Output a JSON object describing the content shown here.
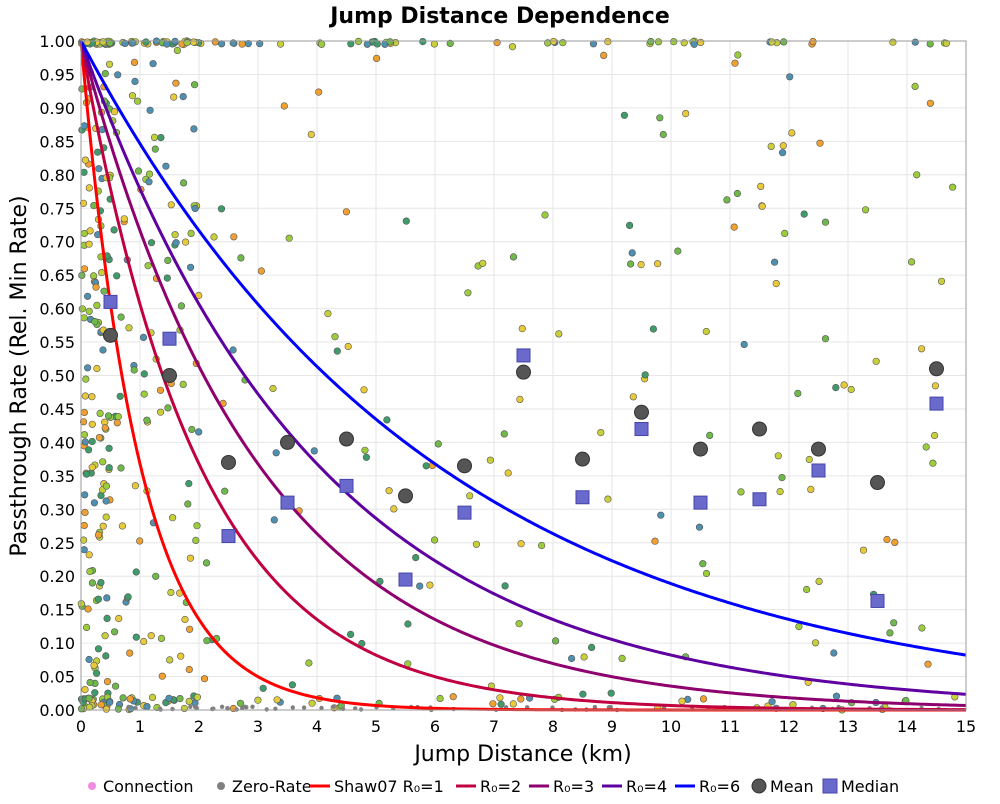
{
  "chart_data": {
    "type": "scatter",
    "title": "Jump Distance Dependence",
    "xlabel": "Jump Distance (km)",
    "ylabel": "Passthrough Rate (Rel. Min Rate)",
    "xlim": [
      0,
      15
    ],
    "ylim": [
      0,
      1
    ],
    "grid": true,
    "legend_position": "bottom",
    "x_ticks": [
      "0",
      "1",
      "2",
      "3",
      "4",
      "5",
      "6",
      "7",
      "8",
      "9",
      "10",
      "11",
      "12",
      "13",
      "14",
      "15"
    ],
    "y_ticks": [
      "0.00",
      "0.05",
      "0.10",
      "0.15",
      "0.20",
      "0.25",
      "0.30",
      "0.35",
      "0.40",
      "0.45",
      "0.50",
      "0.55",
      "0.60",
      "0.65",
      "0.70",
      "0.75",
      "0.80",
      "0.85",
      "0.90",
      "0.95",
      "1.00"
    ],
    "colors": {
      "connection": "#f28ce0",
      "zero_rate": "#808080",
      "r1": "#ff0000",
      "r2": "#c0003f",
      "r3": "#8f006f",
      "r4": "#5f00a0",
      "r6": "#0000ff",
      "mean": "#555555",
      "median": "#6a6acc",
      "scatter_palette": [
        "#e8c93a",
        "#c8cf3a",
        "#9ccc3c",
        "#6fb84a",
        "#3f9c6a",
        "#f0a030",
        "#4f8fb0"
      ]
    },
    "series": [
      {
        "name": "Connection",
        "kind": "scatter",
        "note": "points shown as scattered colored markers"
      },
      {
        "name": "Zero-Rate",
        "kind": "scatter"
      },
      {
        "name": "Shaw07 R₀=1",
        "kind": "line",
        "r0": 1
      },
      {
        "name": "R₀=2",
        "kind": "line",
        "r0": 2
      },
      {
        "name": "R₀=3",
        "kind": "line",
        "r0": 3
      },
      {
        "name": "R₀=4",
        "kind": "line",
        "r0": 4
      },
      {
        "name": "R₀=6",
        "kind": "line",
        "r0": 6
      },
      {
        "name": "Mean",
        "kind": "marker",
        "x": [
          0.5,
          1.5,
          2.5,
          3.5,
          4.5,
          5.5,
          6.5,
          7.5,
          8.5,
          9.5,
          10.5,
          11.5,
          12.5,
          13.5,
          14.5
        ],
        "y": [
          0.56,
          0.5,
          0.37,
          0.4,
          0.405,
          0.32,
          0.365,
          0.505,
          0.375,
          0.445,
          0.39,
          0.42,
          0.39,
          0.34,
          0.51
        ]
      },
      {
        "name": "Median",
        "kind": "marker",
        "x": [
          0.5,
          1.5,
          2.5,
          3.5,
          4.5,
          5.5,
          6.5,
          7.5,
          8.5,
          9.5,
          10.5,
          11.5,
          12.5,
          13.5,
          14.5
        ],
        "y": [
          0.61,
          0.555,
          0.26,
          0.31,
          0.335,
          0.195,
          0.295,
          0.53,
          0.318,
          0.42,
          0.31,
          0.315,
          0.358,
          0.163,
          0.458
        ]
      }
    ],
    "legend": [
      "Connection",
      "Zero-Rate",
      "Shaw07 R₀=1",
      "R₀=2",
      "R₀=3",
      "R₀=4",
      "R₀=6",
      "Mean",
      "Median"
    ]
  }
}
